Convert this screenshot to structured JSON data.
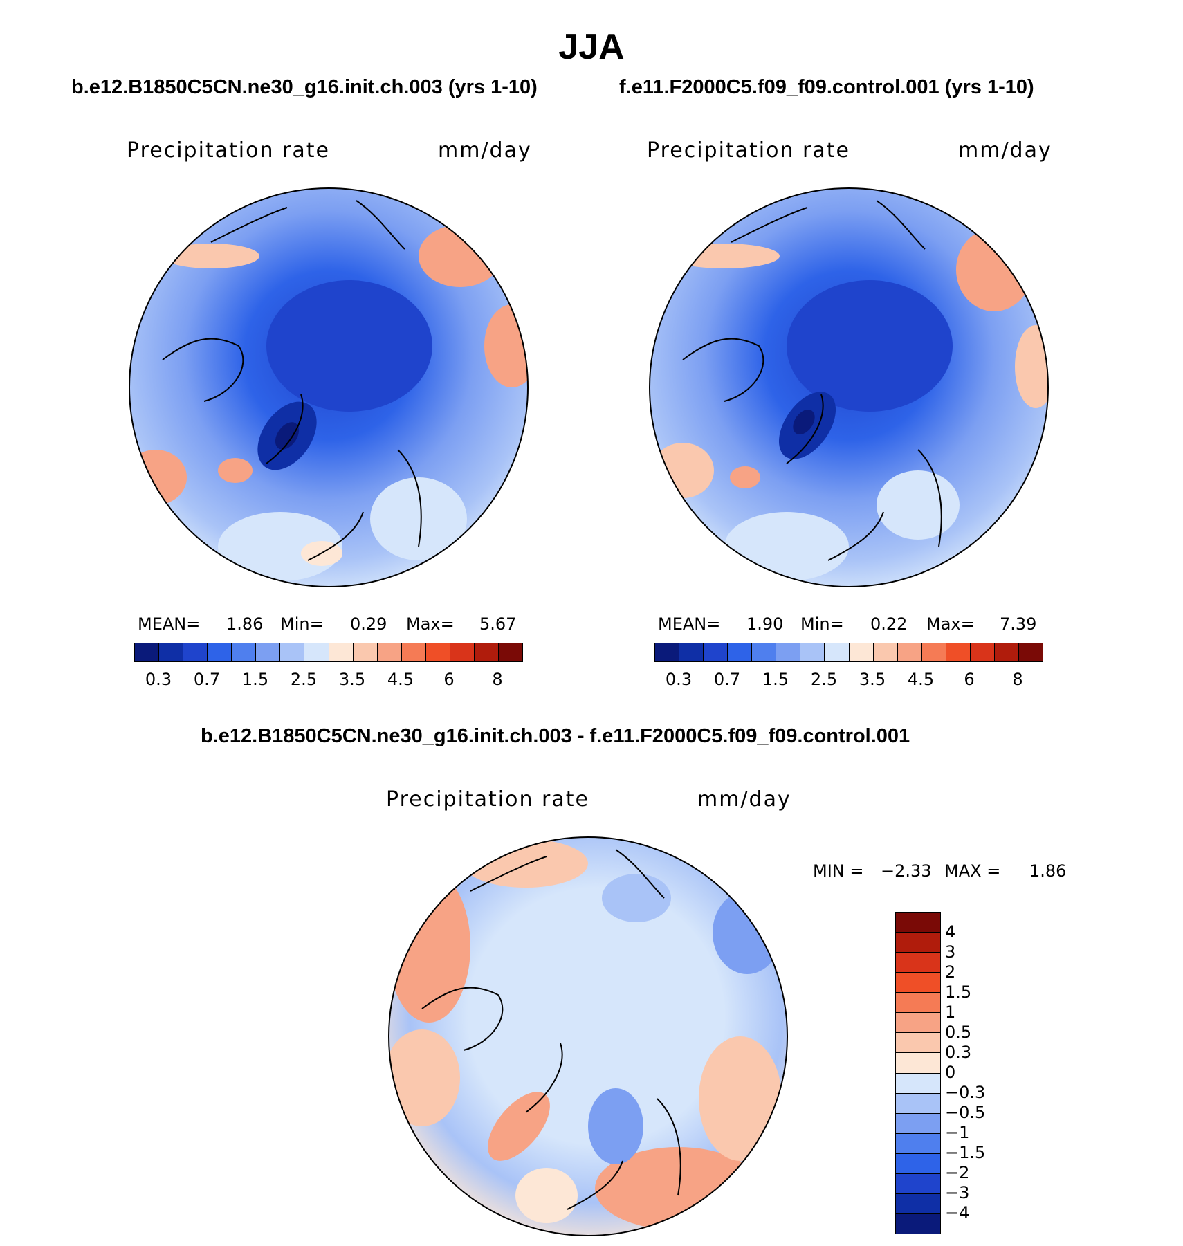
{
  "title": "JJA",
  "panels": [
    {
      "case_label": "b.e12.B1850C5CN.ne30_g16.init.ch.003 (yrs 1-10)",
      "variable": "Precipitation rate",
      "units": "mm/day",
      "stats": {
        "mean_label": "MEAN=",
        "mean": "1.86",
        "min_label": "Min=",
        "min": "0.29",
        "max_label": "Max=",
        "max": "5.67"
      }
    },
    {
      "case_label": "f.e11.F2000C5.f09_f09.control.001 (yrs 1-10)",
      "variable": "Precipitation rate",
      "units": "mm/day",
      "stats": {
        "mean_label": "MEAN=",
        "mean": "1.90",
        "min_label": "Min=",
        "min": "0.22",
        "max_label": "Max=",
        "max": "7.39"
      }
    }
  ],
  "diff_panel": {
    "case_label": "b.e12.B1850C5CN.ne30_g16.init.ch.003 - f.e11.F2000C5.f09_f09.control.001",
    "variable": "Precipitation rate",
    "units": "mm/day",
    "stats": {
      "min_label": "MIN =",
      "min": "−2.33",
      "max_label": "MAX =",
      "max": "1.86"
    }
  },
  "chart_data": [
    {
      "type": "heatmap",
      "projection": "north polar stereographic",
      "variable": "Precipitation rate",
      "units": "mm/day",
      "levels": [
        "0.3",
        "0.7",
        "1.5",
        "2.5",
        "3.5",
        "4.5",
        "6",
        "8"
      ],
      "colors": [
        "#0a1a7a",
        "#0f2fa6",
        "#1f44cc",
        "#2e63e8",
        "#4f7fee",
        "#7c9ff2",
        "#a9c3f7",
        "#d6e6fb",
        "#fde7d6",
        "#fac8ae",
        "#f7a385",
        "#f57b55",
        "#ef4f27",
        "#d9341a",
        "#b01c0c",
        "#7a0a06"
      ]
    },
    {
      "type": "heatmap",
      "projection": "north polar stereographic",
      "variable": "Precipitation rate",
      "units": "mm/day",
      "levels": [
        "0.3",
        "0.7",
        "1.5",
        "2.5",
        "3.5",
        "4.5",
        "6",
        "8"
      ],
      "colors": [
        "#0a1a7a",
        "#0f2fa6",
        "#1f44cc",
        "#2e63e8",
        "#4f7fee",
        "#7c9ff2",
        "#a9c3f7",
        "#d6e6fb",
        "#fde7d6",
        "#fac8ae",
        "#f7a385",
        "#f57b55",
        "#ef4f27",
        "#d9341a",
        "#b01c0c",
        "#7a0a06"
      ]
    },
    {
      "type": "heatmap",
      "projection": "north polar stereographic",
      "variable": "Precipitation rate",
      "units": "mm/day",
      "levels": [
        "4",
        "3",
        "2",
        "1.5",
        "1",
        "0.5",
        "0.3",
        "0",
        "−0.3",
        "−0.5",
        "−1",
        "−1.5",
        "−2",
        "−3",
        "−4"
      ],
      "colors": [
        "#7a0a06",
        "#b01c0c",
        "#d9341a",
        "#ef4f27",
        "#f57b55",
        "#f7a385",
        "#fac8ae",
        "#fde7d6",
        "#d6e6fb",
        "#a9c3f7",
        "#7c9ff2",
        "#4f7fee",
        "#2e63e8",
        "#1f44cc",
        "#0f2fa6",
        "#0a1a7a"
      ]
    }
  ]
}
